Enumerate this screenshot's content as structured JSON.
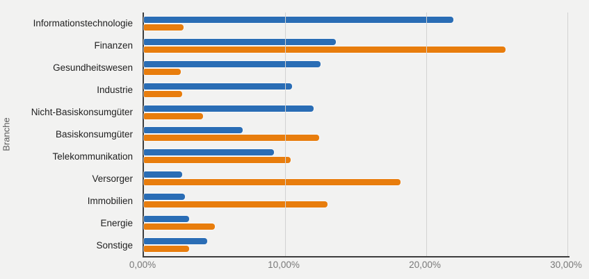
{
  "chart_data": {
    "type": "bar",
    "orientation": "horizontal",
    "title": "",
    "xlabel": "",
    "ylabel": "Branche",
    "xlim": [
      0,
      30
    ],
    "grid": "vertical",
    "legend_position": "none",
    "x_ticks": [
      {
        "label": "0,00%",
        "value": 0
      },
      {
        "label": "10,00%",
        "value": 10
      },
      {
        "label": "20,00%",
        "value": 20
      },
      {
        "label": "30,00%",
        "value": 30
      }
    ],
    "categories": [
      "Informationstechnologie",
      "Finanzen",
      "Gesundheitswesen",
      "Industrie",
      "Nicht-Basiskonsumgüter",
      "Basiskonsumgüter",
      "Telekommunikation",
      "Versorger",
      "Immobilien",
      "Energie",
      "Sonstige"
    ],
    "series": [
      {
        "name": "series-1-blue",
        "color": "#2a6db5",
        "values": [
          21.9,
          13.6,
          12.5,
          10.5,
          12.0,
          7.0,
          9.2,
          2.7,
          2.9,
          3.2,
          4.5
        ]
      },
      {
        "name": "series-2-orange",
        "color": "#e87d0d",
        "values": [
          2.8,
          25.6,
          2.6,
          2.7,
          4.2,
          12.4,
          10.4,
          18.2,
          13.0,
          5.0,
          3.2
        ]
      }
    ],
    "colors": {
      "background": "#f2f2f1",
      "gridline": "#d2d2d2",
      "axis_line": "#3d3d3d",
      "category_text": "#1f1f1f",
      "tick_text": "#787878",
      "axis_title_text": "#595959"
    }
  }
}
